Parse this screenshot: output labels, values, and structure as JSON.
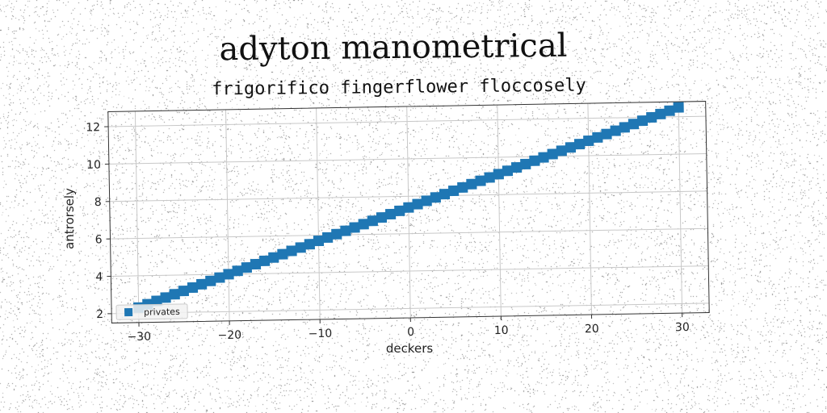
{
  "chart_data": {
    "type": "scatter",
    "title": "adyton manometrical",
    "subtitle": "frigorifico fingerflower floccosely",
    "xlabel": "deckers",
    "ylabel": "antrorsely",
    "xlim": [
      -33,
      33
    ],
    "ylim": [
      1.5,
      12.8
    ],
    "xticks": [
      -30,
      -20,
      -10,
      0,
      10,
      20,
      30
    ],
    "yticks": [
      2,
      4,
      6,
      8,
      10,
      12
    ],
    "grid": true,
    "legend_position": "lower-left",
    "series": [
      {
        "name": "privates",
        "marker": "square",
        "color": "#1f77b4",
        "x_start": -30,
        "x_end": 30,
        "n_points": 61,
        "y_start": 2.3,
        "y_end": 12.5
      }
    ]
  },
  "colors": {
    "grid": "#c8c8c8",
    "axes": "#333333",
    "marker": "#1f77b4",
    "noise": "#707070"
  }
}
